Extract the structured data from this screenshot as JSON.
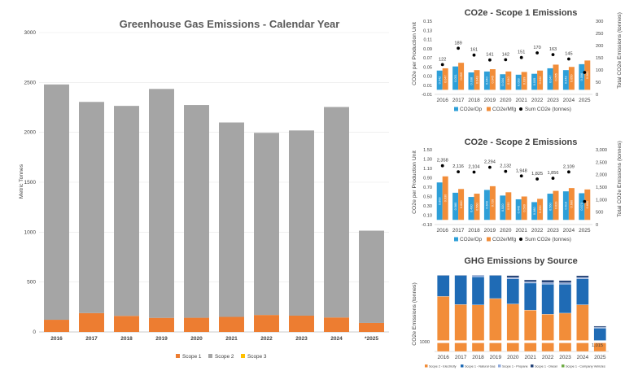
{
  "colors": {
    "scope1": "#ed7d31",
    "scope2": "#a5a5a5",
    "scope3": "#ffc000",
    "op": "#2e9fd8",
    "mfg": "#f28d39",
    "sum": "#000000",
    "electricity": "#f28d39",
    "natural_gas": "#1f6bb5",
    "propane": "#8faadc",
    "diesel": "#264478",
    "vehicles": "#70ad47"
  },
  "chart_data": [
    {
      "id": "main",
      "type": "bar",
      "stacked": true,
      "title": "Greenhouse Gas Emissions - Calendar Year",
      "ylabel": "Metric Tonnes",
      "ylim": [
        0,
        3000
      ],
      "yticks": [
        "0",
        "500",
        "1000",
        "1500",
        "2000",
        "2500",
        "3000"
      ],
      "categories": [
        "2016",
        "2017",
        "2018",
        "2019",
        "2020",
        "2021",
        "2022",
        "2023",
        "2024",
        "*2025"
      ],
      "series": [
        {
          "name": "Scope 1",
          "color_key": "scope1",
          "values": [
            122,
            189,
            161,
            141,
            142,
            151,
            170,
            163,
            145,
            90
          ]
        },
        {
          "name": "Scope 2",
          "color_key": "scope2",
          "values": [
            2358,
            2116,
            2104,
            2294,
            2132,
            1948,
            1825,
            1856,
            2109,
            925
          ]
        },
        {
          "name": "Scope 3",
          "color_key": "scope3",
          "values": [
            0,
            0,
            0,
            0,
            0,
            0,
            0,
            0,
            0,
            0
          ]
        }
      ],
      "legend": "bottom"
    },
    {
      "id": "scope1",
      "type": "bar",
      "title": "CO2e - Scope 1 Emissions",
      "ylabel": "CO2e per Production Unit",
      "y2label": "Total CO2e Emissions (tonnes)",
      "ylim": [
        -0.01,
        0.15
      ],
      "yticks": [
        "-0.01",
        "0.01",
        "0.03",
        "0.05",
        "0.07",
        "0.09",
        "0.11",
        "0.13",
        "0.15"
      ],
      "y2lim": [
        0,
        300
      ],
      "y2ticks": [
        "0",
        "50",
        "100",
        "150",
        "200",
        "250",
        "300"
      ],
      "categories": [
        "2016",
        "2017",
        "2018",
        "2019",
        "2020",
        "2021",
        "2022",
        "2023",
        "2024",
        "2025"
      ],
      "series": [
        {
          "name": "CO2e/Op",
          "color_key": "op",
          "values": [
            0.042,
            0.051,
            0.038,
            0.04,
            0.034,
            0.033,
            0.035,
            0.047,
            0.043,
            0.056
          ]
        },
        {
          "name": "CO2e/Mfg",
          "color_key": "mfg",
          "values": [
            0.047,
            0.059,
            0.043,
            0.045,
            0.04,
            0.039,
            0.042,
            0.055,
            0.05,
            0.064
          ]
        }
      ],
      "bar_labels": [
        [
          "0.042",
          "0.047"
        ],
        [
          "0.051",
          "0.059"
        ],
        [
          "0.038",
          "0.043"
        ],
        [
          "0.040",
          "0.045"
        ],
        [
          "0.034",
          "0.040"
        ],
        [
          "0.033",
          "0.039"
        ],
        [
          "0.035",
          "0.042"
        ],
        [
          "0.047",
          "0.055"
        ],
        [
          "0.043",
          "0.050"
        ],
        [
          "0.056",
          "0.064"
        ]
      ],
      "sum_series": {
        "name": "Sum CO2e (tonnes)",
        "color_key": "sum",
        "values": [
          122,
          189,
          161,
          141,
          142,
          151,
          170,
          163,
          145,
          90
        ],
        "labels": [
          "122",
          "189",
          "161",
          "141",
          "142",
          "151",
          "170",
          "163",
          "145",
          ""
        ]
      },
      "legend": "bottom"
    },
    {
      "id": "scope2",
      "type": "bar",
      "title": "CO2e - Scope 2 Emissions",
      "ylabel": "CO2e per Production Unit",
      "y2label": "Total CO2e Emissions (tonnes)",
      "ylim": [
        -0.1,
        1.5
      ],
      "yticks": [
        "-0.10",
        "0.10",
        "0.30",
        "0.50",
        "0.70",
        "0.90",
        "1.10",
        "1.30",
        "1.50"
      ],
      "y2lim": [
        0,
        3000
      ],
      "y2ticks": [
        "0",
        "500",
        "1,000",
        "1,500",
        "2,000",
        "2,500",
        "3,000"
      ],
      "categories": [
        "2016",
        "2017",
        "2018",
        "2019",
        "2020",
        "2021",
        "2022",
        "2023",
        "2024",
        "2025"
      ],
      "series": [
        {
          "name": "CO2e/Op",
          "color_key": "op",
          "values": [
            0.8,
            0.58,
            0.49,
            0.64,
            0.52,
            0.44,
            0.38,
            0.56,
            0.61,
            0.57
          ]
        },
        {
          "name": "CO2e/Mfg",
          "color_key": "mfg",
          "values": [
            0.93,
            0.66,
            0.56,
            0.72,
            0.59,
            0.5,
            0.45,
            0.62,
            0.68,
            0.65
          ]
        }
      ],
      "bar_labels": [
        [
          "0.800",
          "0.930"
        ],
        [
          "0.580",
          "0.660"
        ],
        [
          "0.490",
          "0.560"
        ],
        [
          "0.640",
          "0.720"
        ],
        [
          "0.520",
          "0.590"
        ],
        [
          "0.440",
          "0.500"
        ],
        [
          "0.380",
          "0.450"
        ],
        [
          "0.560",
          "0.620"
        ],
        [
          "0.610",
          "0.680"
        ],
        [
          "0.570",
          "0.650"
        ]
      ],
      "sum_series": {
        "name": "Sum CO2e (tonnes)",
        "color_key": "sum",
        "values": [
          2358,
          2116,
          2104,
          2294,
          2132,
          1948,
          1825,
          1856,
          2109,
          925
        ],
        "labels": [
          "2,358",
          "2,116",
          "2,104",
          "2,294",
          "2,132",
          "1,948",
          "1,825",
          "1,856",
          "2,109",
          ""
        ]
      },
      "legend": "bottom"
    },
    {
      "id": "source",
      "type": "bar",
      "stacked": true,
      "title": "GHG Emissions by Source",
      "ylabel": "CO2e Emissions (tonnes)",
      "ylim": [
        0,
        3000
      ],
      "yticks": [
        "1000"
      ],
      "y_break": true,
      "categories": [
        "2016",
        "2017",
        "2018",
        "2019",
        "2020",
        "2021",
        "2022",
        "2023",
        "2024",
        "2025"
      ],
      "series": [
        {
          "name": "Scope 2 - Electricity",
          "color_key": "electricity",
          "values": [
            2358,
            2116,
            2104,
            2294,
            2132,
            1948,
            1825,
            1856,
            2109,
            925
          ]
        },
        {
          "name": "Scope 1 - Natural Gas",
          "color_key": "natural_gas",
          "values": [
            110,
            170,
            140,
            125,
            125,
            135,
            150,
            145,
            130,
            80
          ]
        },
        {
          "name": "Scope 1 - Propane",
          "color_key": "propane",
          "values": [
            5,
            8,
            8,
            6,
            7,
            6,
            8,
            7,
            6,
            4
          ]
        },
        {
          "name": "Scope 1 - Diesel",
          "color_key": "diesel",
          "values": [
            7,
            11,
            13,
            10,
            10,
            10,
            12,
            11,
            9,
            6
          ]
        },
        {
          "name": "Scope 1 - Company Vehicles",
          "color_key": "vehicles",
          "values": [
            0,
            0,
            0,
            0,
            0,
            0,
            0,
            0,
            0,
            0
          ]
        }
      ],
      "annotation": "1,015",
      "legend": "bottom"
    }
  ]
}
